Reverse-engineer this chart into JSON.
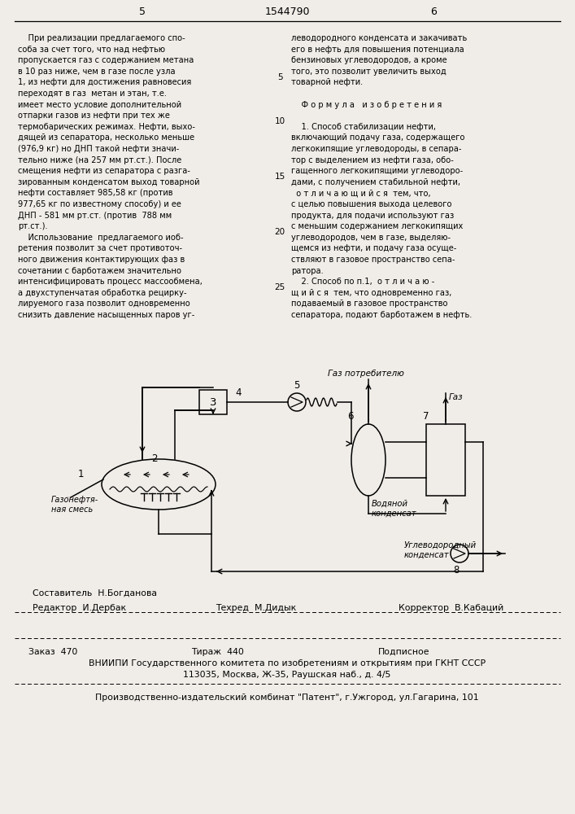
{
  "bg_color": "#f0ede8",
  "page_num_left": "5",
  "page_num_center": "1544790",
  "page_num_right": "6",
  "left_col": [
    "    При реализации предлагаемого спо-",
    "соба за счет того, что над нефтью",
    "пропускается газ с содержанием метана",
    "в 10 раз ниже, чем в газе после узла",
    "1, из нефти для достижения равновесия",
    "переходят в газ  метан и этан, т.е.",
    "имеет место условие дополнительной",
    "отпарки газов из нефти при тех же",
    "термобарических режимах. Нефти, выхо-",
    "дящей из сепаратора, несколько меньше",
    "(976,9 кг) но ДНП такой нефти значи-",
    "тельно ниже (на 257 мм рт.ст.). После",
    "смещения нефти из сепаратора с разга-",
    "зированным конденсатом выход товарной",
    "нефти составляет 985,58 кг (против",
    "977,65 кг по известному способу) и ее",
    "ДНП - 581 мм рт.ст. (против  788 мм",
    "рт.ст.).",
    "    Использование  предлагаемого иоб-",
    "ретения позволит за счет противоточ-",
    "ного движения контактирующих фаз в",
    "сочетании с барботажем значительно",
    "интенсифицировать процесс массообмена,",
    "а двухступенчатая обработка рецирку-",
    "лируемого газа позволит одновременно",
    "снизить давление насыщенных паров уг-"
  ],
  "right_col": [
    "леводородного конденсата и закачивать",
    "его в нефть для повышения потенциала",
    "бензиновых углеводородов, а кроме",
    "того, это позволит увеличить выход",
    "товарной нефти.",
    "",
    "    Ф о р м у л а   и з о б р е т е н и я",
    "",
    "    1. Способ стабилизации нефти,",
    "включающий подачу газа, содержащего",
    "легкокипящие углеводороды, в сепара-",
    "тор с выделением из нефти газа, обо-",
    "гащенного легкокипящими углеводоро-",
    "дами, с получением стабильной нефти,",
    "  о т л и ч а ю щ и й с я  тем, что,",
    "с целью повышения выхода целевого",
    "продукта, для подачи используют газ",
    "с меньшим содержанием легкокипящих",
    "углеводородов, чем в газе, выделяю-",
    "щемся из нефти, и подачу газа осуще-",
    "ствляют в газовое пространство сепа-",
    "ратора.",
    "    2. Способ по п.1,  о т л и ч а ю -",
    "щ и й с я  тем, что одновременно газ,",
    "подаваемый в газовое пространство",
    "сепаратора, подают барботажем в нефть."
  ],
  "line_nums": [
    [
      5,
      4
    ],
    [
      10,
      8
    ],
    [
      15,
      13
    ],
    [
      20,
      18
    ],
    [
      25,
      23
    ]
  ],
  "footer_editor": "Редактор  И.Дербак",
  "footer_composer": "Составитель  Н.Богданова",
  "footer_tech": "Техред  М.Дидык",
  "footer_corr": "Корректор  В.Кабаций",
  "footer_order": "Заказ  470",
  "footer_print": "Тираж  440",
  "footer_sub": "Подписное",
  "footer_vniip": "ВНИИПИ Государственного комитета по изобретениям и открытиям при ГКНТ СССР",
  "footer_addr": "113035, Москва, Ж-35, Раушская наб., д. 4/5",
  "footer_plant": "Производственно-издательский комбинат \"Патент\", г.Ужгород, ул.Гагарина, 101",
  "diag_gaz_potr": "Газ потребителю",
  "diag_gaz": "Газ",
  "diag_vod1": "Водяной",
  "diag_vod2": "конденсат",
  "diag_ugl1": "Углеводородный",
  "diag_ugl2": "конденсат",
  "diag_gneft1": "Газонефтя-",
  "diag_gneft2": "ная смесь"
}
